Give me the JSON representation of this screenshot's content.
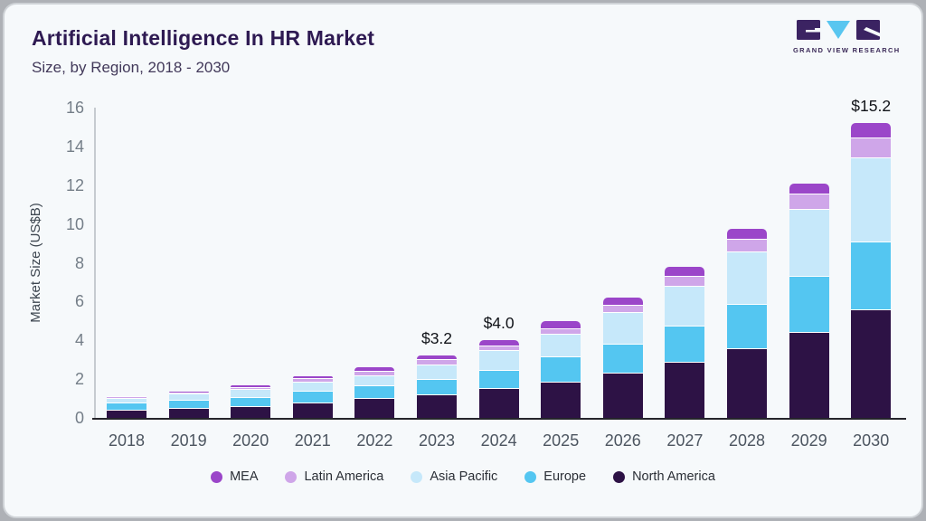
{
  "header": {
    "title": "Artificial Intelligence In HR Market",
    "subtitle": "Size, by Region, 2018 - 2030",
    "logo_text": "GRAND VIEW RESEARCH"
  },
  "colors": {
    "logo_purple": "#3b2362",
    "logo_blue": "#59c6f0",
    "axis_line": "#c6cbd0",
    "baseline": "#25252b",
    "card_background": "#f6f9fb"
  },
  "chart_data": {
    "type": "bar",
    "stacked": true,
    "title": "Artificial Intelligence In HR Market",
    "subtitle": "Size, by Region, 2018 - 2030",
    "xlabel": "",
    "ylabel": "Market Size (US$B)",
    "ylim": [
      0,
      16
    ],
    "yticks": [
      0,
      2,
      4,
      6,
      8,
      10,
      12,
      14,
      16
    ],
    "grid": false,
    "legend_position": "bottom",
    "categories": [
      "2018",
      "2019",
      "2020",
      "2021",
      "2022",
      "2023",
      "2024",
      "2025",
      "2026",
      "2027",
      "2028",
      "2029",
      "2030"
    ],
    "series": [
      {
        "name": "North America",
        "color": "#2d1245",
        "values": [
          0.42,
          0.52,
          0.62,
          0.8,
          1.03,
          1.2,
          1.52,
          1.87,
          2.34,
          2.9,
          3.6,
          4.44,
          5.61
        ]
      },
      {
        "name": "Europe",
        "color": "#54c6f1",
        "values": [
          0.35,
          0.42,
          0.47,
          0.6,
          0.65,
          0.81,
          0.96,
          1.31,
          1.5,
          1.87,
          2.3,
          2.86,
          3.47
        ]
      },
      {
        "name": "Asia Pacific",
        "color": "#c6e8fa",
        "values": [
          0.27,
          0.3,
          0.42,
          0.47,
          0.52,
          0.75,
          1.01,
          1.17,
          1.61,
          2.06,
          2.7,
          3.46,
          4.35
        ]
      },
      {
        "name": "Latin America",
        "color": "#cfa6e9",
        "values": [
          0.06,
          0.07,
          0.1,
          0.16,
          0.22,
          0.27,
          0.23,
          0.28,
          0.37,
          0.5,
          0.62,
          0.79,
          1.03
        ]
      },
      {
        "name": "MEA",
        "color": "#9b46c9",
        "values": [
          0.04,
          0.05,
          0.07,
          0.12,
          0.19,
          0.17,
          0.28,
          0.38,
          0.39,
          0.47,
          0.52,
          0.55,
          0.74
        ]
      }
    ],
    "totals": [
      1.14,
      1.36,
      1.68,
      2.15,
      2.61,
      3.2,
      4.0,
      5.0,
      6.2,
      7.8,
      9.7,
      12.1,
      15.2
    ],
    "annotations": [
      {
        "category": "2023",
        "label": "$3.2"
      },
      {
        "category": "2024",
        "label": "$4.0"
      },
      {
        "category": "2030",
        "label": "$15.2"
      }
    ],
    "legend": [
      "MEA",
      "Latin America",
      "Asia Pacific",
      "Europe",
      "North America"
    ]
  }
}
